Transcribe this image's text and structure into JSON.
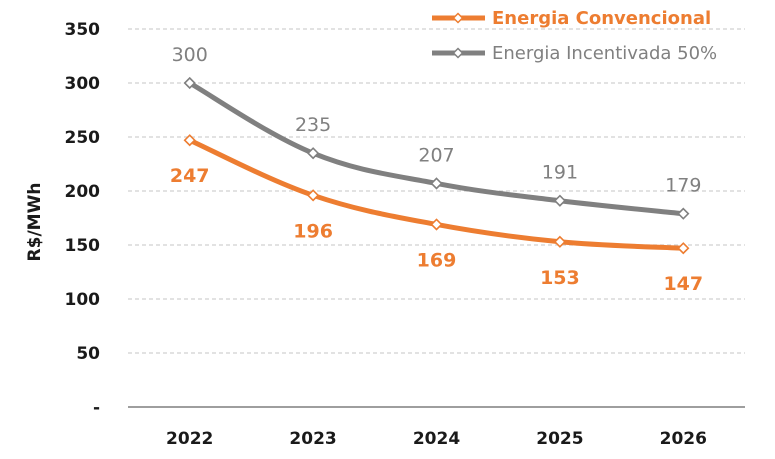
{
  "chart_data": {
    "type": "line",
    "categories": [
      "2022",
      "2023",
      "2024",
      "2025",
      "2026"
    ],
    "ylabel": "R$/MWh",
    "xlabel": "",
    "ylim": [
      0,
      350
    ],
    "yticks": [
      {
        "value": 0,
        "label": "-"
      },
      {
        "value": 50,
        "label": "50"
      },
      {
        "value": 100,
        "label": "100"
      },
      {
        "value": 150,
        "label": "150"
      },
      {
        "value": 200,
        "label": "200"
      },
      {
        "value": 250,
        "label": "250"
      },
      {
        "value": 300,
        "label": "300"
      },
      {
        "value": 350,
        "label": "350"
      }
    ],
    "grid": true,
    "legend_position": "top-right",
    "series": [
      {
        "name": "Energia Convencional",
        "values": [
          247,
          196,
          169,
          153,
          147
        ],
        "color": "#ED7D31",
        "label_position": "below",
        "label_bold": true
      },
      {
        "name": "Energia Incentivada 50%",
        "values": [
          300,
          235,
          207,
          191,
          179
        ],
        "color": "#808080",
        "label_position": "above",
        "label_bold": false
      }
    ]
  }
}
